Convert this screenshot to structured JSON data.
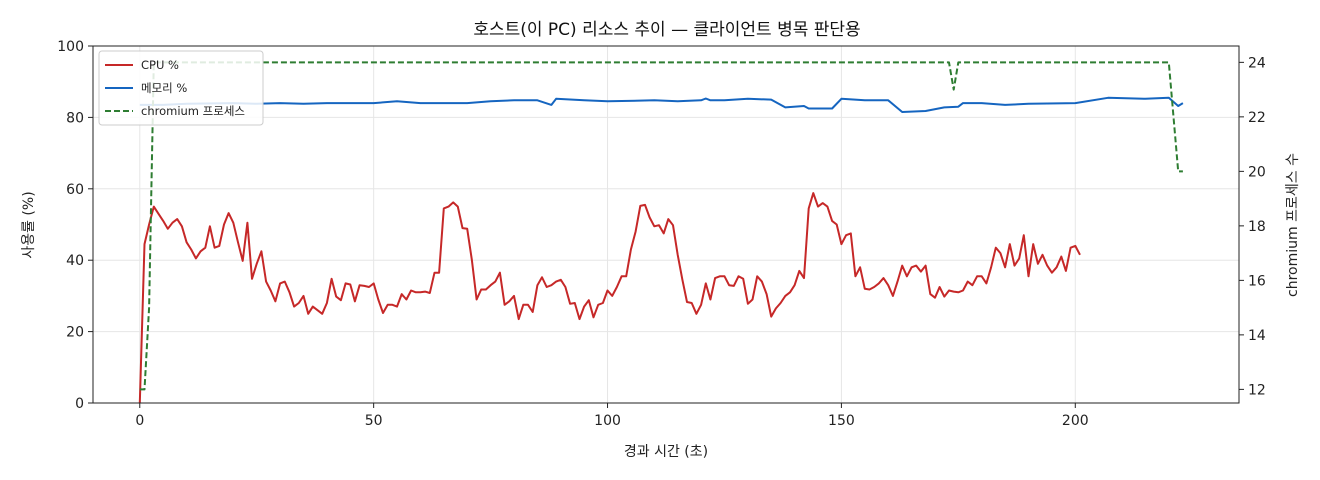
{
  "chart_data": {
    "type": "line",
    "title": "호스트(이 PC) 리소스 추이 — 클라이언트 병목 판단용",
    "xlabel": "경과 시간 (초)",
    "ylabel": "사용률 (%)",
    "y2label": "chromium 프로세스 수",
    "xlim": [
      -10,
      235
    ],
    "ylim": [
      0,
      100
    ],
    "y2lim": [
      11.5,
      24.6
    ],
    "xticks": [
      0,
      50,
      100,
      150,
      200
    ],
    "yticks": [
      0,
      20,
      40,
      60,
      80,
      100
    ],
    "y2ticks": [
      12,
      14,
      16,
      18,
      20,
      22,
      24
    ],
    "grid": true,
    "legend_position": "top-left",
    "series": [
      {
        "name": "CPU %",
        "axis": "left",
        "color": "#c62828",
        "style": "solid",
        "points": [
          [
            0,
            0
          ],
          [
            1,
            44.5
          ],
          [
            2,
            50
          ],
          [
            3,
            55
          ],
          [
            4,
            53
          ],
          [
            5,
            51
          ],
          [
            6,
            48.8
          ],
          [
            7,
            50.5
          ],
          [
            8,
            51.5
          ],
          [
            9,
            49.5
          ],
          [
            10,
            45
          ],
          [
            11,
            43
          ],
          [
            12,
            40.5
          ],
          [
            13,
            42.5
          ],
          [
            14,
            43.5
          ],
          [
            15,
            49.5
          ],
          [
            16,
            43.5
          ],
          [
            17,
            44
          ],
          [
            18,
            50
          ],
          [
            19,
            53.2
          ],
          [
            20,
            50.5
          ],
          [
            21,
            45
          ],
          [
            22,
            39.8
          ],
          [
            23,
            50.5
          ],
          [
            24,
            34.8
          ],
          [
            25,
            39
          ],
          [
            26,
            42.5
          ],
          [
            27,
            34
          ],
          [
            28,
            31.5
          ],
          [
            29,
            28.5
          ],
          [
            30,
            33.5
          ],
          [
            31,
            34
          ],
          [
            32,
            31
          ],
          [
            33,
            27
          ],
          [
            34,
            28
          ],
          [
            35,
            30
          ],
          [
            36,
            25
          ],
          [
            37,
            27
          ],
          [
            38,
            26
          ],
          [
            39,
            25
          ],
          [
            40,
            28
          ],
          [
            41,
            34.8
          ],
          [
            42,
            29.8
          ],
          [
            43,
            28.8
          ],
          [
            44,
            33.5
          ],
          [
            45,
            33.2
          ],
          [
            46,
            28.5
          ],
          [
            47,
            33
          ],
          [
            48,
            32.8
          ],
          [
            49,
            32.5
          ],
          [
            50,
            33.5
          ],
          [
            51,
            29
          ],
          [
            52,
            25.2
          ],
          [
            53,
            27.5
          ],
          [
            54,
            27.5
          ],
          [
            55,
            27
          ],
          [
            56,
            30.5
          ],
          [
            57,
            29
          ],
          [
            58,
            31.5
          ],
          [
            59,
            31
          ],
          [
            60,
            31
          ],
          [
            61,
            31.2
          ],
          [
            62,
            30.8
          ],
          [
            63,
            36.5
          ],
          [
            64,
            36.5
          ],
          [
            65,
            54.5
          ],
          [
            66,
            55
          ],
          [
            67,
            56.2
          ],
          [
            68,
            55
          ],
          [
            69,
            49
          ],
          [
            70,
            48.8
          ],
          [
            71,
            40
          ],
          [
            72,
            29
          ],
          [
            73,
            31.8
          ],
          [
            74,
            31.8
          ],
          [
            75,
            33
          ],
          [
            76,
            34
          ],
          [
            77,
            36.5
          ],
          [
            78,
            27.5
          ],
          [
            79,
            28.5
          ],
          [
            80,
            30
          ],
          [
            81,
            23.5
          ],
          [
            82,
            27.5
          ],
          [
            83,
            27.5
          ],
          [
            84,
            25.5
          ],
          [
            85,
            33
          ],
          [
            86,
            35.2
          ],
          [
            87,
            32.5
          ],
          [
            88,
            33
          ],
          [
            89,
            34
          ],
          [
            90,
            34.5
          ],
          [
            91,
            32.5
          ],
          [
            92,
            27.8
          ],
          [
            93,
            28
          ],
          [
            94,
            23.5
          ],
          [
            95,
            27
          ],
          [
            96,
            28.8
          ],
          [
            97,
            24
          ],
          [
            98,
            27.5
          ],
          [
            99,
            28
          ],
          [
            100,
            31.5
          ],
          [
            101,
            30
          ],
          [
            102,
            32.5
          ],
          [
            103,
            35.5
          ],
          [
            104,
            35.5
          ],
          [
            105,
            43
          ],
          [
            106,
            48
          ],
          [
            107,
            55.2
          ],
          [
            108,
            55.5
          ],
          [
            109,
            52
          ],
          [
            110,
            49.5
          ],
          [
            111,
            49.8
          ],
          [
            112,
            47.5
          ],
          [
            113,
            51.5
          ],
          [
            114,
            49.8
          ],
          [
            115,
            41.5
          ],
          [
            116,
            34.5
          ],
          [
            117,
            28.3
          ],
          [
            118,
            28
          ],
          [
            119,
            25
          ],
          [
            120,
            27.5
          ],
          [
            121,
            33.5
          ],
          [
            122,
            29
          ],
          [
            123,
            35
          ],
          [
            124,
            35.5
          ],
          [
            125,
            35.5
          ],
          [
            126,
            33
          ],
          [
            127,
            32.8
          ],
          [
            128,
            35.5
          ],
          [
            129,
            34.8
          ],
          [
            130,
            27.8
          ],
          [
            131,
            29
          ],
          [
            132,
            35.5
          ],
          [
            133,
            34
          ],
          [
            134,
            30.5
          ],
          [
            135,
            24.2
          ],
          [
            136,
            26.5
          ],
          [
            137,
            28
          ],
          [
            138,
            30
          ],
          [
            139,
            31
          ],
          [
            140,
            33
          ],
          [
            141,
            37
          ],
          [
            142,
            35
          ],
          [
            143,
            54.5
          ],
          [
            144,
            58.8
          ],
          [
            145,
            55
          ],
          [
            146,
            56
          ],
          [
            147,
            55
          ],
          [
            148,
            51
          ],
          [
            149,
            50
          ],
          [
            150,
            44.5
          ],
          [
            151,
            47
          ],
          [
            152,
            47.5
          ],
          [
            153,
            35.5
          ],
          [
            154,
            38
          ],
          [
            155,
            32
          ],
          [
            156,
            31.8
          ],
          [
            157,
            32.5
          ],
          [
            158,
            33.5
          ],
          [
            159,
            35
          ],
          [
            160,
            33
          ],
          [
            161,
            30
          ],
          [
            162,
            34
          ],
          [
            163,
            38.5
          ],
          [
            164,
            35.5
          ],
          [
            165,
            38
          ],
          [
            166,
            38.5
          ],
          [
            167,
            36.8
          ],
          [
            168,
            38.5
          ],
          [
            169,
            30.5
          ],
          [
            170,
            29.5
          ],
          [
            171,
            32.5
          ],
          [
            172,
            29.8
          ],
          [
            173,
            31.5
          ],
          [
            174,
            31.2
          ],
          [
            175,
            31
          ],
          [
            176,
            31.5
          ],
          [
            177,
            34
          ],
          [
            178,
            33
          ],
          [
            179,
            35.5
          ],
          [
            180,
            35.5
          ],
          [
            181,
            33.5
          ],
          [
            182,
            38
          ],
          [
            183,
            43.5
          ],
          [
            184,
            42
          ],
          [
            185,
            38
          ],
          [
            186,
            44.5
          ],
          [
            187,
            38.5
          ],
          [
            188,
            40.5
          ],
          [
            189,
            47
          ],
          [
            190,
            35.5
          ],
          [
            191,
            44.5
          ],
          [
            192,
            39
          ],
          [
            193,
            41.5
          ],
          [
            194,
            38.5
          ],
          [
            195,
            36.5
          ],
          [
            196,
            38
          ],
          [
            197,
            41
          ],
          [
            198,
            37
          ],
          [
            199,
            43.5
          ],
          [
            200,
            44
          ],
          [
            201,
            41.5
          ]
        ]
      },
      {
        "name": "메모리 %",
        "axis": "left",
        "color": "#1565c0",
        "style": "solid",
        "points": [
          [
            0,
            83.5
          ],
          [
            5,
            83.5
          ],
          [
            10,
            83.8
          ],
          [
            20,
            84
          ],
          [
            25,
            83.8
          ],
          [
            30,
            84
          ],
          [
            35,
            83.8
          ],
          [
            40,
            84
          ],
          [
            50,
            84
          ],
          [
            55,
            84.5
          ],
          [
            60,
            84
          ],
          [
            65,
            84
          ],
          [
            70,
            84
          ],
          [
            75,
            84.5
          ],
          [
            80,
            84.8
          ],
          [
            85,
            84.8
          ],
          [
            88,
            83.5
          ],
          [
            89,
            85.2
          ],
          [
            95,
            84.8
          ],
          [
            100,
            84.5
          ],
          [
            110,
            84.8
          ],
          [
            115,
            84.5
          ],
          [
            120,
            84.8
          ],
          [
            121,
            85.3
          ],
          [
            122,
            84.8
          ],
          [
            125,
            84.8
          ],
          [
            130,
            85.2
          ],
          [
            135,
            85
          ],
          [
            138,
            82.8
          ],
          [
            142,
            83.2
          ],
          [
            143,
            82.5
          ],
          [
            148,
            82.5
          ],
          [
            150,
            85.2
          ],
          [
            155,
            84.8
          ],
          [
            160,
            84.8
          ],
          [
            163,
            81.5
          ],
          [
            168,
            81.8
          ],
          [
            172,
            82.8
          ],
          [
            175,
            83
          ],
          [
            176,
            84
          ],
          [
            180,
            84
          ],
          [
            185,
            83.5
          ],
          [
            190,
            83.8
          ],
          [
            200,
            84
          ],
          [
            207,
            85.5
          ],
          [
            215,
            85.2
          ],
          [
            220,
            85.5
          ],
          [
            222,
            83.2
          ],
          [
            223,
            84
          ]
        ]
      },
      {
        "name": "chromium 프로세스",
        "axis": "right",
        "color": "#2e7d32",
        "style": "dashed",
        "points": [
          [
            0,
            12
          ],
          [
            1,
            12
          ],
          [
            2,
            15
          ],
          [
            3,
            24
          ],
          [
            4,
            24
          ],
          [
            170,
            24
          ],
          [
            173,
            24
          ],
          [
            174,
            23
          ],
          [
            175,
            24
          ],
          [
            220,
            24
          ],
          [
            222,
            20
          ],
          [
            223,
            20
          ]
        ]
      }
    ]
  }
}
